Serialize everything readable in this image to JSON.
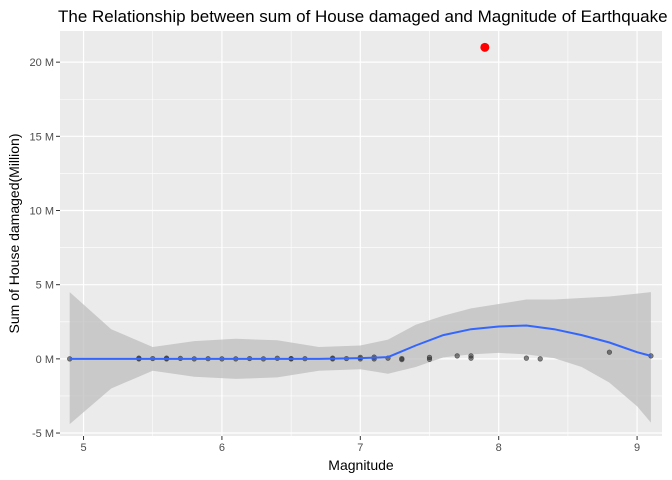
{
  "chart_data": {
    "type": "scatter",
    "title": "The Relationship between sum of House damaged and Magnitude of Earthquake",
    "xlabel": "Magnitude",
    "ylabel": "Sum of House damaged(Million)",
    "xlim": [
      4.83,
      9.18
    ],
    "ylim": [
      -5.2,
      22.1
    ],
    "x_ticks": [
      5,
      6,
      7,
      8,
      9
    ],
    "y_ticks": [
      -5,
      0,
      5,
      10,
      15,
      20
    ],
    "x_tick_labels": [
      "5",
      "6",
      "7",
      "8",
      "9"
    ],
    "y_tick_labels": [
      "-5 M",
      "0 M",
      "5 M",
      "10 M",
      "15 M",
      "20 M"
    ],
    "grid": true,
    "colors": {
      "panel": "#ebebeb",
      "grid_major": "#ffffff",
      "points": "#333333",
      "highlight": "#ff0000",
      "smooth_line": "#3366ff",
      "ribbon": "#bdbdbd"
    },
    "series": [
      {
        "points": [
          {
            "x": 4.9,
            "y": 0.0
          },
          {
            "x": 5.4,
            "y": 0.05
          },
          {
            "x": 5.4,
            "y": 0.0
          },
          {
            "x": 5.5,
            "y": 0.02
          },
          {
            "x": 5.6,
            "y": 0.05
          },
          {
            "x": 5.6,
            "y": 0.0
          },
          {
            "x": 5.7,
            "y": 0.03
          },
          {
            "x": 5.8,
            "y": 0.0
          },
          {
            "x": 5.9,
            "y": 0.01
          },
          {
            "x": 6.0,
            "y": 0.0
          },
          {
            "x": 6.1,
            "y": 0.0
          },
          {
            "x": 6.2,
            "y": 0.02
          },
          {
            "x": 6.3,
            "y": 0.0
          },
          {
            "x": 6.4,
            "y": 0.04
          },
          {
            "x": 6.5,
            "y": 0.02
          },
          {
            "x": 6.5,
            "y": 0.0
          },
          {
            "x": 6.6,
            "y": 0.01
          },
          {
            "x": 6.8,
            "y": 0.05
          },
          {
            "x": 6.8,
            "y": 0.0
          },
          {
            "x": 6.9,
            "y": 0.02
          },
          {
            "x": 7.0,
            "y": 0.1
          },
          {
            "x": 7.0,
            "y": 0.0
          },
          {
            "x": 7.1,
            "y": 0.12
          },
          {
            "x": 7.1,
            "y": 0.0
          },
          {
            "x": 7.2,
            "y": 0.05
          },
          {
            "x": 7.3,
            "y": -0.05
          },
          {
            "x": 7.3,
            "y": 0.02
          },
          {
            "x": 7.5,
            "y": 0.1
          },
          {
            "x": 7.5,
            "y": -0.03
          },
          {
            "x": 7.7,
            "y": 0.2
          },
          {
            "x": 7.8,
            "y": 0.2
          },
          {
            "x": 7.8,
            "y": 0.05
          },
          {
            "x": 8.2,
            "y": 0.05
          },
          {
            "x": 8.3,
            "y": 0.0
          },
          {
            "x": 8.8,
            "y": 0.45
          },
          {
            "x": 9.1,
            "y": 0.2
          }
        ]
      },
      {
        "highlight": true,
        "points": [
          {
            "x": 7.9,
            "y": 21.0
          }
        ]
      }
    ],
    "smooth": {
      "x": [
        4.9,
        5.2,
        5.5,
        5.8,
        6.1,
        6.4,
        6.7,
        7.0,
        7.2,
        7.4,
        7.6,
        7.8,
        8.0,
        8.2,
        8.4,
        8.6,
        8.8,
        9.0,
        9.1
      ],
      "y": [
        0.0,
        0.0,
        0.0,
        0.0,
        0.0,
        0.0,
        0.0,
        0.05,
        0.12,
        0.9,
        1.6,
        2.0,
        2.18,
        2.25,
        2.0,
        1.6,
        1.1,
        0.45,
        0.2
      ],
      "lower": [
        -4.4,
        -2.0,
        -0.8,
        -1.2,
        -1.35,
        -1.25,
        -0.8,
        -0.7,
        -1.0,
        -0.55,
        0.1,
        0.3,
        0.4,
        0.3,
        0.05,
        -0.55,
        -1.6,
        -3.2,
        -4.3
      ],
      "upper": [
        4.5,
        2.0,
        0.8,
        1.2,
        1.35,
        1.25,
        0.8,
        0.9,
        1.3,
        2.3,
        2.9,
        3.4,
        3.7,
        4.0,
        4.0,
        4.1,
        4.2,
        4.4,
        4.5
      ]
    }
  }
}
